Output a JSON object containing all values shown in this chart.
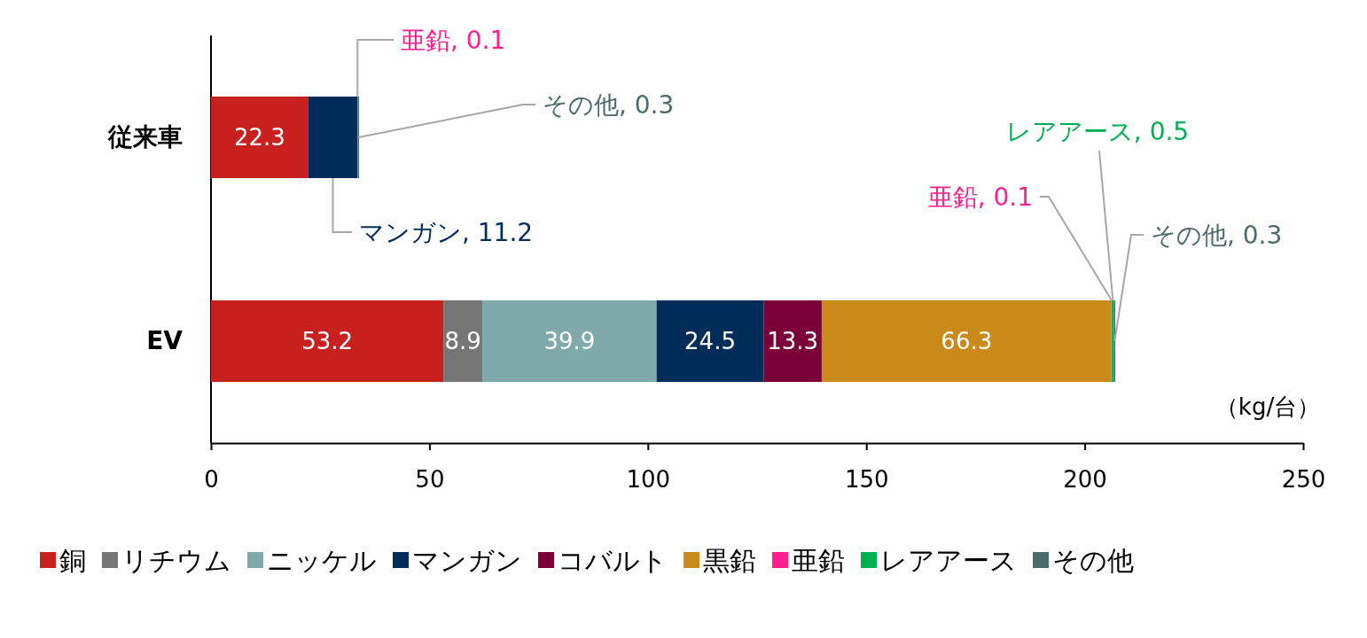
{
  "chart_data": {
    "type": "bar",
    "orientation": "horizontal",
    "stacked": true,
    "categories": [
      "従来車",
      "EV"
    ],
    "series": [
      {
        "name": "銅",
        "color": "#c8201f",
        "values": [
          22.3,
          53.2
        ],
        "value_labels": [
          "22.3",
          "53.2"
        ]
      },
      {
        "name": "リチウム",
        "color": "#767676",
        "values": [
          null,
          8.9
        ],
        "value_labels": [
          null,
          "8.9"
        ]
      },
      {
        "name": "ニッケル",
        "color": "#80a9ab",
        "values": [
          null,
          39.9
        ],
        "value_labels": [
          null,
          "39.9"
        ]
      },
      {
        "name": "マンガン",
        "color": "#002c59",
        "values": [
          11.2,
          24.5
        ],
        "value_labels": [
          "マンガン, 11.2",
          "24.5"
        ]
      },
      {
        "name": "コバルト",
        "color": "#7c0038",
        "values": [
          null,
          13.3
        ],
        "value_labels": [
          null,
          "13.3"
        ]
      },
      {
        "name": "黒鉛",
        "color": "#c98a1a",
        "values": [
          null,
          66.3
        ],
        "value_labels": [
          null,
          "66.3"
        ]
      },
      {
        "name": "亜鉛",
        "color": "#ff1f8e",
        "values": [
          0.1,
          0.1
        ],
        "value_labels": [
          "亜鉛, 0.1",
          "亜鉛, 0.1"
        ]
      },
      {
        "name": "レアアース",
        "color": "#00b050",
        "values": [
          null,
          0.5
        ],
        "value_labels": [
          null,
          "レアアース, 0.5"
        ]
      },
      {
        "name": "その他",
        "color": "#4a6b6b",
        "values": [
          0.3,
          0.3
        ],
        "value_labels": [
          "その他, 0.3",
          "その他, 0.3"
        ]
      }
    ],
    "xlim": [
      0,
      250
    ],
    "xticks": [
      0,
      50,
      100,
      150,
      200,
      250
    ],
    "annotations": [
      "（kg/台）"
    ],
    "legend": "bottom"
  }
}
